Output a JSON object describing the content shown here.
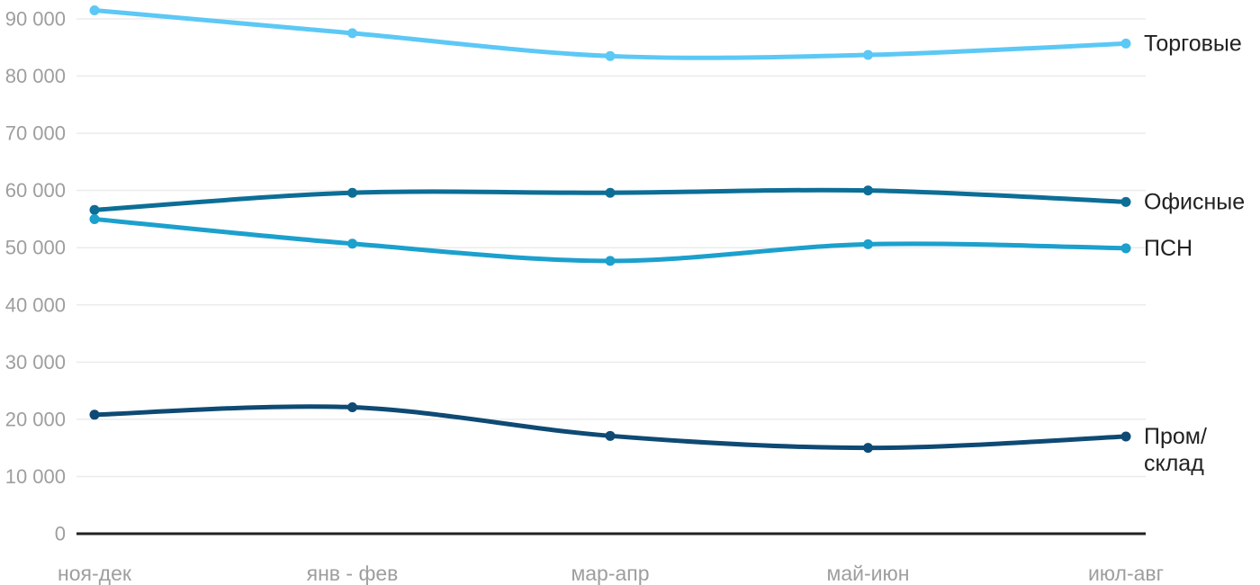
{
  "chart_data": {
    "type": "line",
    "categories": [
      "ноя-дек",
      "янв - фев",
      "мар-апр",
      "май-июн",
      "июл-авг"
    ],
    "series": [
      {
        "key": "torgovye",
        "name": "Торговые",
        "label_lines": [
          "Торговые"
        ],
        "color": "#5cc8f5",
        "values": [
          91500,
          87500,
          83500,
          83700,
          85700
        ]
      },
      {
        "key": "ofisnye",
        "name": "Офисные",
        "label_lines": [
          "Офисные"
        ],
        "color": "#0c6e96",
        "values": [
          56600,
          59600,
          59600,
          60000,
          58000
        ]
      },
      {
        "key": "psn",
        "name": "ПСН",
        "label_lines": [
          "ПСН"
        ],
        "color": "#1ca0cd",
        "values": [
          55000,
          50700,
          47700,
          50600,
          49900
        ]
      },
      {
        "key": "prom-sklad",
        "name": "Пром/склад",
        "label_lines": [
          "Пром/",
          "склад"
        ],
        "color": "#0e4a73",
        "values": [
          20800,
          22100,
          17100,
          15000,
          17000
        ]
      }
    ],
    "y_axis": {
      "range": [
        0,
        90000
      ],
      "tick_step": 10000,
      "ticks": [
        {
          "value": 0,
          "label": "0"
        },
        {
          "value": 10000,
          "label": "10 000"
        },
        {
          "value": 20000,
          "label": "20 000"
        },
        {
          "value": 30000,
          "label": "30 000"
        },
        {
          "value": 40000,
          "label": "40 000"
        },
        {
          "value": 50000,
          "label": "50 000"
        },
        {
          "value": 60000,
          "label": "60 000"
        },
        {
          "value": 70000,
          "label": "70 000"
        },
        {
          "value": 80000,
          "label": "80 000"
        },
        {
          "value": 90000,
          "label": "90 000"
        }
      ]
    },
    "grid": true,
    "legend_position": "right-of-line-end",
    "colors": {
      "axis_line": "#212121",
      "gridline": "#ebebeb",
      "tick_label": "#9e9e9e",
      "series_label": "#212121",
      "background": "#ffffff"
    }
  }
}
